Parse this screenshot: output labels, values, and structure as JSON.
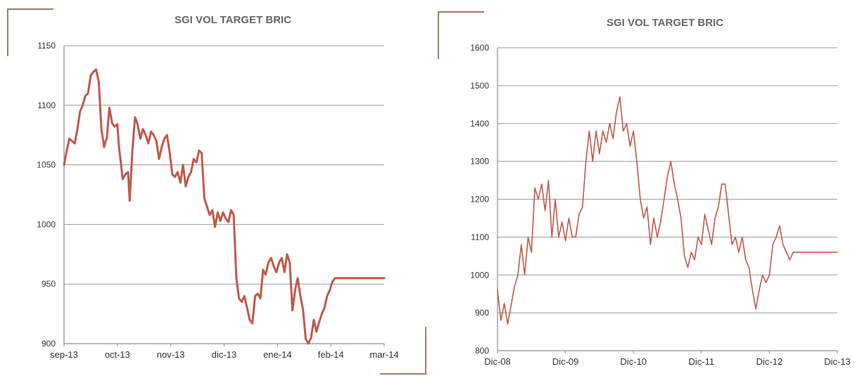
{
  "colors": {
    "line": "#c0594a",
    "axis": "#8a8a8a",
    "grid": "#9a9a9a",
    "corner": "#a27a6c",
    "title": "#666666",
    "tick": "#333333"
  },
  "chart_data": [
    {
      "type": "line",
      "title": "SGI VOL TARGET BRIC",
      "ylim": [
        900,
        1150
      ],
      "yticks": [
        900,
        950,
        1000,
        1050,
        1100,
        1150
      ],
      "xlim": [
        0,
        6
      ],
      "xticks": [
        0,
        1,
        2,
        3,
        4,
        5,
        6
      ],
      "xtick_labels": [
        "sep-13",
        "oct-13",
        "nov-13",
        "dic-13",
        "ene-14",
        "feb-14",
        "mar-14"
      ],
      "grid": true,
      "series": [
        {
          "x": [
            0,
            0.05,
            0.1,
            0.15,
            0.2,
            0.25,
            0.3,
            0.35,
            0.4,
            0.45,
            0.5,
            0.55,
            0.6,
            0.65,
            0.7,
            0.75,
            0.78,
            0.8,
            0.85,
            0.9,
            0.95,
            1.0,
            1.03,
            1.07,
            1.1,
            1.15,
            1.2,
            1.23,
            1.28,
            1.33,
            1.38,
            1.43,
            1.48,
            1.53,
            1.58,
            1.63,
            1.68,
            1.73,
            1.78,
            1.83,
            1.88,
            1.93,
            1.98,
            2.03,
            2.08,
            2.13,
            2.18,
            2.23,
            2.28,
            2.33,
            2.38,
            2.43,
            2.48,
            2.53,
            2.58,
            2.63,
            2.68,
            2.73,
            2.78,
            2.83,
            2.88,
            2.93,
            2.98,
            3.03,
            3.08,
            3.13,
            3.18,
            3.23,
            3.28,
            3.33,
            3.38,
            3.43,
            3.48,
            3.53,
            3.58,
            3.63,
            3.68,
            3.73,
            3.78,
            3.83,
            3.88,
            3.93,
            3.98,
            4.03,
            4.08,
            4.13,
            4.18,
            4.23,
            4.28,
            4.33,
            4.38,
            4.43,
            4.48,
            4.53,
            4.58,
            4.63,
            4.68,
            4.73,
            4.78,
            4.83,
            4.88,
            4.93,
            4.98,
            5.03,
            5.08,
            5.13,
            5.18,
            5.23,
            5.28,
            5.33,
            5.38,
            5.43,
            5.48,
            5.53,
            5.58,
            5.63,
            5.68,
            5.73,
            5.78,
            5.83,
            5.88,
            5.93,
            6.0
          ],
          "y": [
            1050,
            1062,
            1072,
            1070,
            1068,
            1080,
            1095,
            1100,
            1108,
            1110,
            1125,
            1128,
            1130,
            1120,
            1080,
            1065,
            1070,
            1072,
            1098,
            1085,
            1082,
            1084,
            1065,
            1050,
            1038,
            1042,
            1044,
            1020,
            1062,
            1090,
            1084,
            1072,
            1080,
            1075,
            1068,
            1078,
            1075,
            1070,
            1055,
            1065,
            1072,
            1075,
            1060,
            1042,
            1040,
            1044,
            1035,
            1050,
            1032,
            1040,
            1044,
            1055,
            1052,
            1062,
            1060,
            1022,
            1015,
            1008,
            1012,
            998,
            1010,
            1003,
            1010,
            1005,
            1002,
            1012,
            1008,
            955,
            938,
            935,
            940,
            930,
            920,
            917,
            940,
            942,
            938,
            962,
            958,
            968,
            972,
            965,
            960,
            968,
            972,
            960,
            975,
            968,
            928,
            945,
            955,
            940,
            928,
            904,
            900,
            905,
            920,
            910,
            918,
            925,
            930,
            940,
            945,
            952,
            955,
            955,
            955,
            955,
            955,
            955,
            955,
            955,
            955,
            955,
            955,
            955,
            955,
            955,
            955,
            955,
            955,
            955,
            955
          ]
        }
      ]
    },
    {
      "type": "line",
      "title": "SGI VOL TARGET BRIC",
      "ylim": [
        800,
        1600
      ],
      "yticks": [
        800,
        900,
        1000,
        1100,
        1200,
        1300,
        1400,
        1500,
        1600
      ],
      "xlim": [
        0,
        5
      ],
      "xticks": [
        0,
        1,
        2,
        3,
        4,
        5
      ],
      "xtick_labels": [
        "Dic-08",
        "Dic-09",
        "Dic-10",
        "Dic-11",
        "Dic-12",
        "Dic-13"
      ],
      "grid": true,
      "series": [
        {
          "x": [
            0,
            0.05,
            0.1,
            0.15,
            0.2,
            0.25,
            0.3,
            0.35,
            0.4,
            0.45,
            0.5,
            0.55,
            0.6,
            0.65,
            0.7,
            0.75,
            0.8,
            0.85,
            0.9,
            0.95,
            1.0,
            1.05,
            1.1,
            1.15,
            1.2,
            1.25,
            1.3,
            1.35,
            1.4,
            1.45,
            1.5,
            1.55,
            1.6,
            1.65,
            1.7,
            1.75,
            1.8,
            1.85,
            1.9,
            1.95,
            2.0,
            2.05,
            2.1,
            2.15,
            2.2,
            2.25,
            2.3,
            2.35,
            2.4,
            2.45,
            2.5,
            2.55,
            2.6,
            2.65,
            2.7,
            2.75,
            2.8,
            2.85,
            2.9,
            2.95,
            3.0,
            3.05,
            3.1,
            3.15,
            3.2,
            3.25,
            3.3,
            3.35,
            3.4,
            3.45,
            3.5,
            3.55,
            3.6,
            3.65,
            3.7,
            3.75,
            3.8,
            3.85,
            3.9,
            3.95,
            4.0,
            4.05,
            4.1,
            4.15,
            4.2,
            4.25,
            4.3,
            4.35,
            4.4,
            4.45,
            4.5,
            4.55,
            4.6,
            4.65,
            4.7,
            4.75,
            4.8,
            4.85,
            4.9,
            4.95,
            5.0
          ],
          "y": [
            960,
            880,
            925,
            870,
            920,
            970,
            1000,
            1080,
            1000,
            1100,
            1060,
            1230,
            1200,
            1240,
            1170,
            1250,
            1100,
            1200,
            1100,
            1140,
            1090,
            1150,
            1100,
            1100,
            1160,
            1180,
            1300,
            1380,
            1300,
            1380,
            1320,
            1380,
            1350,
            1400,
            1360,
            1430,
            1470,
            1380,
            1400,
            1340,
            1380,
            1300,
            1200,
            1150,
            1180,
            1080,
            1150,
            1100,
            1140,
            1200,
            1260,
            1300,
            1240,
            1200,
            1150,
            1050,
            1020,
            1060,
            1040,
            1100,
            1080,
            1160,
            1120,
            1080,
            1150,
            1180,
            1240,
            1240,
            1160,
            1080,
            1100,
            1060,
            1100,
            1040,
            1020,
            960,
            910,
            960,
            1000,
            980,
            1000,
            1080,
            1100,
            1130,
            1080,
            1060,
            1040,
            1060,
            1060,
            1060,
            1060,
            1060,
            1060,
            1060,
            1060,
            1060,
            1060,
            1060,
            1060,
            1060,
            1060
          ]
        }
      ]
    }
  ]
}
